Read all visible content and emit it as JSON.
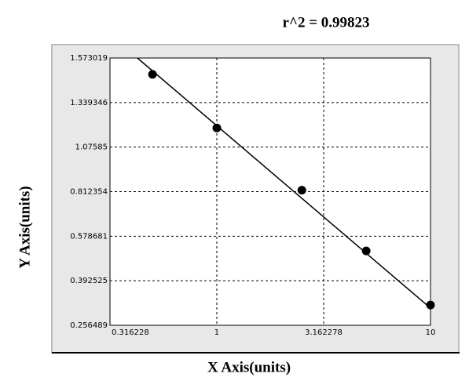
{
  "chart_data": {
    "type": "scatter",
    "title": "r^2 = 0.99823",
    "xlabel": "X Axis(units)",
    "ylabel": "Y Axis(units)",
    "xscale": "log",
    "x": [
      0.5,
      1,
      2.5,
      5,
      10
    ],
    "values": [
      1.487,
      1.189,
      0.821,
      0.517,
      0.3185
    ],
    "color": "#000000",
    "fit": {
      "x": [
        0.425,
        10
      ],
      "y": [
        1.573019,
        0.309
      ],
      "color": "#000000"
    },
    "xlim": [
      0.316228,
      10
    ],
    "xticks": [
      0.316228,
      1,
      3.162278,
      10
    ],
    "ylim": [
      0.256489,
      1.573019
    ],
    "yticks": [
      0.256489,
      0.392525,
      0.578681,
      0.812354,
      1.07585,
      1.339346,
      1.573019
    ],
    "grid": true
  }
}
